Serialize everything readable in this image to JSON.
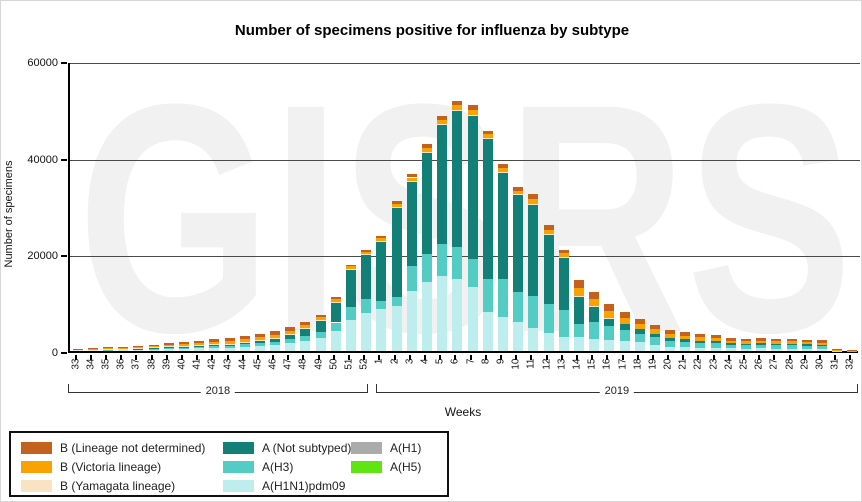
{
  "title": "Number of specimens positive for influenza by subtype",
  "watermark": "GISRS",
  "y_axis": {
    "title": "Number of specimens"
  },
  "x_axis": {
    "title": "Weeks"
  },
  "colors": {
    "a_h1n1pdm09": "#BEEDEE",
    "a_h3": "#53CCC3",
    "a_not_subtyped": "#128077",
    "a_h1": "#ABABAB",
    "a_h5": "#5FE612",
    "b_yamagata": "#F8E3C2",
    "b_victoria": "#F9A302",
    "b_not_determined": "#C3611F",
    "gridline": "#4a4a4a",
    "watermark": "#f1f1f1"
  },
  "legend": {
    "columns": [
      [
        {
          "label": "B (Lineage not determined)",
          "color": "#C3611F"
        },
        {
          "label": "B (Victoria lineage)",
          "color": "#F9A302"
        },
        {
          "label": "B (Yamagata lineage)",
          "color": "#F8E3C2"
        }
      ],
      [
        {
          "label": "A (Not subtyped)",
          "color": "#128077"
        },
        {
          "label": "A(H3)",
          "color": "#53CCC3"
        },
        {
          "label": "A(H1N1)pdm09",
          "color": "#BEEDEE"
        }
      ],
      [
        {
          "label": "A(H1)",
          "color": "#ABABAB"
        },
        {
          "label": "A(H5)",
          "color": "#5FE612"
        }
      ]
    ]
  },
  "chart_data": {
    "type": "bar",
    "stacked": true,
    "title": "Number of specimens positive for influenza by subtype",
    "xlabel": "Weeks",
    "ylabel": "Number of specimens",
    "ylim": [
      0,
      60000
    ],
    "yticks": [
      0,
      20000,
      40000,
      60000
    ],
    "grid": "horizontal",
    "legend_position": "bottom-left",
    "categories": [
      "33",
      "34",
      "35",
      "36",
      "37",
      "38",
      "39",
      "40",
      "41",
      "42",
      "43",
      "44",
      "45",
      "46",
      "47",
      "48",
      "49",
      "50",
      "51",
      "52",
      "1",
      "2",
      "3",
      "4",
      "5",
      "6",
      "7",
      "8",
      "9",
      "10",
      "11",
      "12",
      "13",
      "14",
      "15",
      "16",
      "17",
      "18",
      "19",
      "20",
      "21",
      "22",
      "23",
      "24",
      "25",
      "26",
      "27",
      "28",
      "29",
      "30",
      "31",
      "32"
    ],
    "year_groups": [
      {
        "label": "2018",
        "start_index": 0,
        "end_index": 19
      },
      {
        "label": "2019",
        "start_index": 20,
        "end_index": 51
      }
    ],
    "series": [
      {
        "name": "A(H1N1)pdm09",
        "color": "#BEEDEE",
        "values": [
          120,
          130,
          200,
          220,
          250,
          330,
          450,
          500,
          560,
          650,
          720,
          900,
          1050,
          1300,
          1600,
          2100,
          2700,
          4200,
          6500,
          7800,
          8600,
          9300,
          12400,
          14300,
          15500,
          14900,
          13200,
          8100,
          7000,
          6000,
          4800,
          3800,
          3000,
          2900,
          2500,
          2200,
          2070,
          1800,
          1300,
          900,
          800,
          700,
          700,
          550,
          500,
          550,
          500,
          500,
          450,
          450,
          50,
          20
        ]
      },
      {
        "name": "A(H3)",
        "color": "#53CCC3",
        "values": [
          60,
          70,
          100,
          110,
          120,
          160,
          220,
          250,
          280,
          330,
          370,
          450,
          550,
          650,
          800,
          1000,
          1200,
          1700,
          2600,
          3000,
          1800,
          1900,
          5200,
          5800,
          6600,
          6600,
          5800,
          6800,
          7900,
          6200,
          6600,
          6000,
          5500,
          2700,
          3500,
          2900,
          2280,
          1800,
          1500,
          1200,
          1100,
          1000,
          900,
          750,
          700,
          750,
          700,
          700,
          650,
          600,
          80,
          30
        ]
      },
      {
        "name": "A (Not subtyped)",
        "color": "#128077",
        "values": [
          40,
          40,
          60,
          70,
          80,
          100,
          130,
          150,
          170,
          200,
          230,
          300,
          400,
          550,
          900,
          1400,
          2300,
          4100,
          7800,
          9100,
          12200,
          18500,
          17500,
          21000,
          24700,
          28200,
          29800,
          29100,
          22100,
          20100,
          19000,
          14300,
          10800,
          5600,
          3300,
          1650,
          1250,
          1000,
          800,
          600,
          500,
          400,
          400,
          300,
          300,
          300,
          300,
          300,
          250,
          250,
          30,
          10
        ]
      },
      {
        "name": "A(H1)",
        "color": "#ABABAB",
        "values": [
          0,
          0,
          0,
          0,
          0,
          0,
          0,
          0,
          0,
          0,
          0,
          0,
          0,
          0,
          0,
          0,
          0,
          0,
          0,
          0,
          0,
          0,
          0,
          0,
          0,
          0,
          0,
          0,
          0,
          0,
          0,
          0,
          0,
          0,
          0,
          0,
          0,
          0,
          0,
          0,
          0,
          0,
          0,
          0,
          0,
          0,
          0,
          0,
          0,
          0,
          0,
          0
        ]
      },
      {
        "name": "A(H5)",
        "color": "#5FE612",
        "values": [
          0,
          0,
          0,
          0,
          0,
          0,
          0,
          0,
          0,
          0,
          0,
          0,
          0,
          0,
          0,
          0,
          0,
          0,
          0,
          0,
          0,
          0,
          0,
          0,
          0,
          0,
          0,
          0,
          0,
          0,
          0,
          0,
          0,
          0,
          0,
          0,
          0,
          0,
          0,
          0,
          0,
          0,
          0,
          0,
          0,
          0,
          0,
          0,
          0,
          0,
          0,
          0
        ]
      },
      {
        "name": "B (Yamagata lineage)",
        "color": "#F8E3C2",
        "values": [
          60,
          70,
          90,
          100,
          110,
          140,
          170,
          190,
          200,
          220,
          230,
          250,
          250,
          250,
          250,
          250,
          200,
          200,
          150,
          150,
          150,
          100,
          100,
          100,
          100,
          100,
          100,
          100,
          100,
          100,
          100,
          100,
          100,
          100,
          100,
          100,
          0,
          0,
          0,
          0,
          0,
          0,
          0,
          0,
          0,
          0,
          0,
          0,
          0,
          0,
          0,
          0
        ]
      },
      {
        "name": "B (Victoria lineage)",
        "color": "#F9A302",
        "values": [
          90,
          100,
          140,
          160,
          180,
          230,
          300,
          330,
          360,
          400,
          430,
          500,
          550,
          600,
          600,
          600,
          600,
          550,
          450,
          450,
          600,
          600,
          700,
          800,
          900,
          1000,
          1000,
          800,
          830,
          800,
          1000,
          900,
          800,
          1650,
          1450,
          1450,
          1250,
          1000,
          900,
          800,
          750,
          700,
          650,
          550,
          500,
          550,
          500,
          500,
          450,
          450,
          120,
          70
        ]
      },
      {
        "name": "B (Lineage not determined)",
        "color": "#C3611F",
        "values": [
          130,
          140,
          210,
          240,
          260,
          340,
          430,
          480,
          530,
          600,
          620,
          700,
          700,
          750,
          750,
          650,
          500,
          450,
          400,
          400,
          450,
          600,
          700,
          800,
          900,
          1000,
          1000,
          700,
          830,
          800,
          1000,
          900,
          800,
          1650,
          1450,
          1450,
          1250,
          1000,
          900,
          800,
          750,
          700,
          650,
          550,
          500,
          550,
          500,
          500,
          450,
          450,
          120,
          70
        ]
      }
    ]
  }
}
